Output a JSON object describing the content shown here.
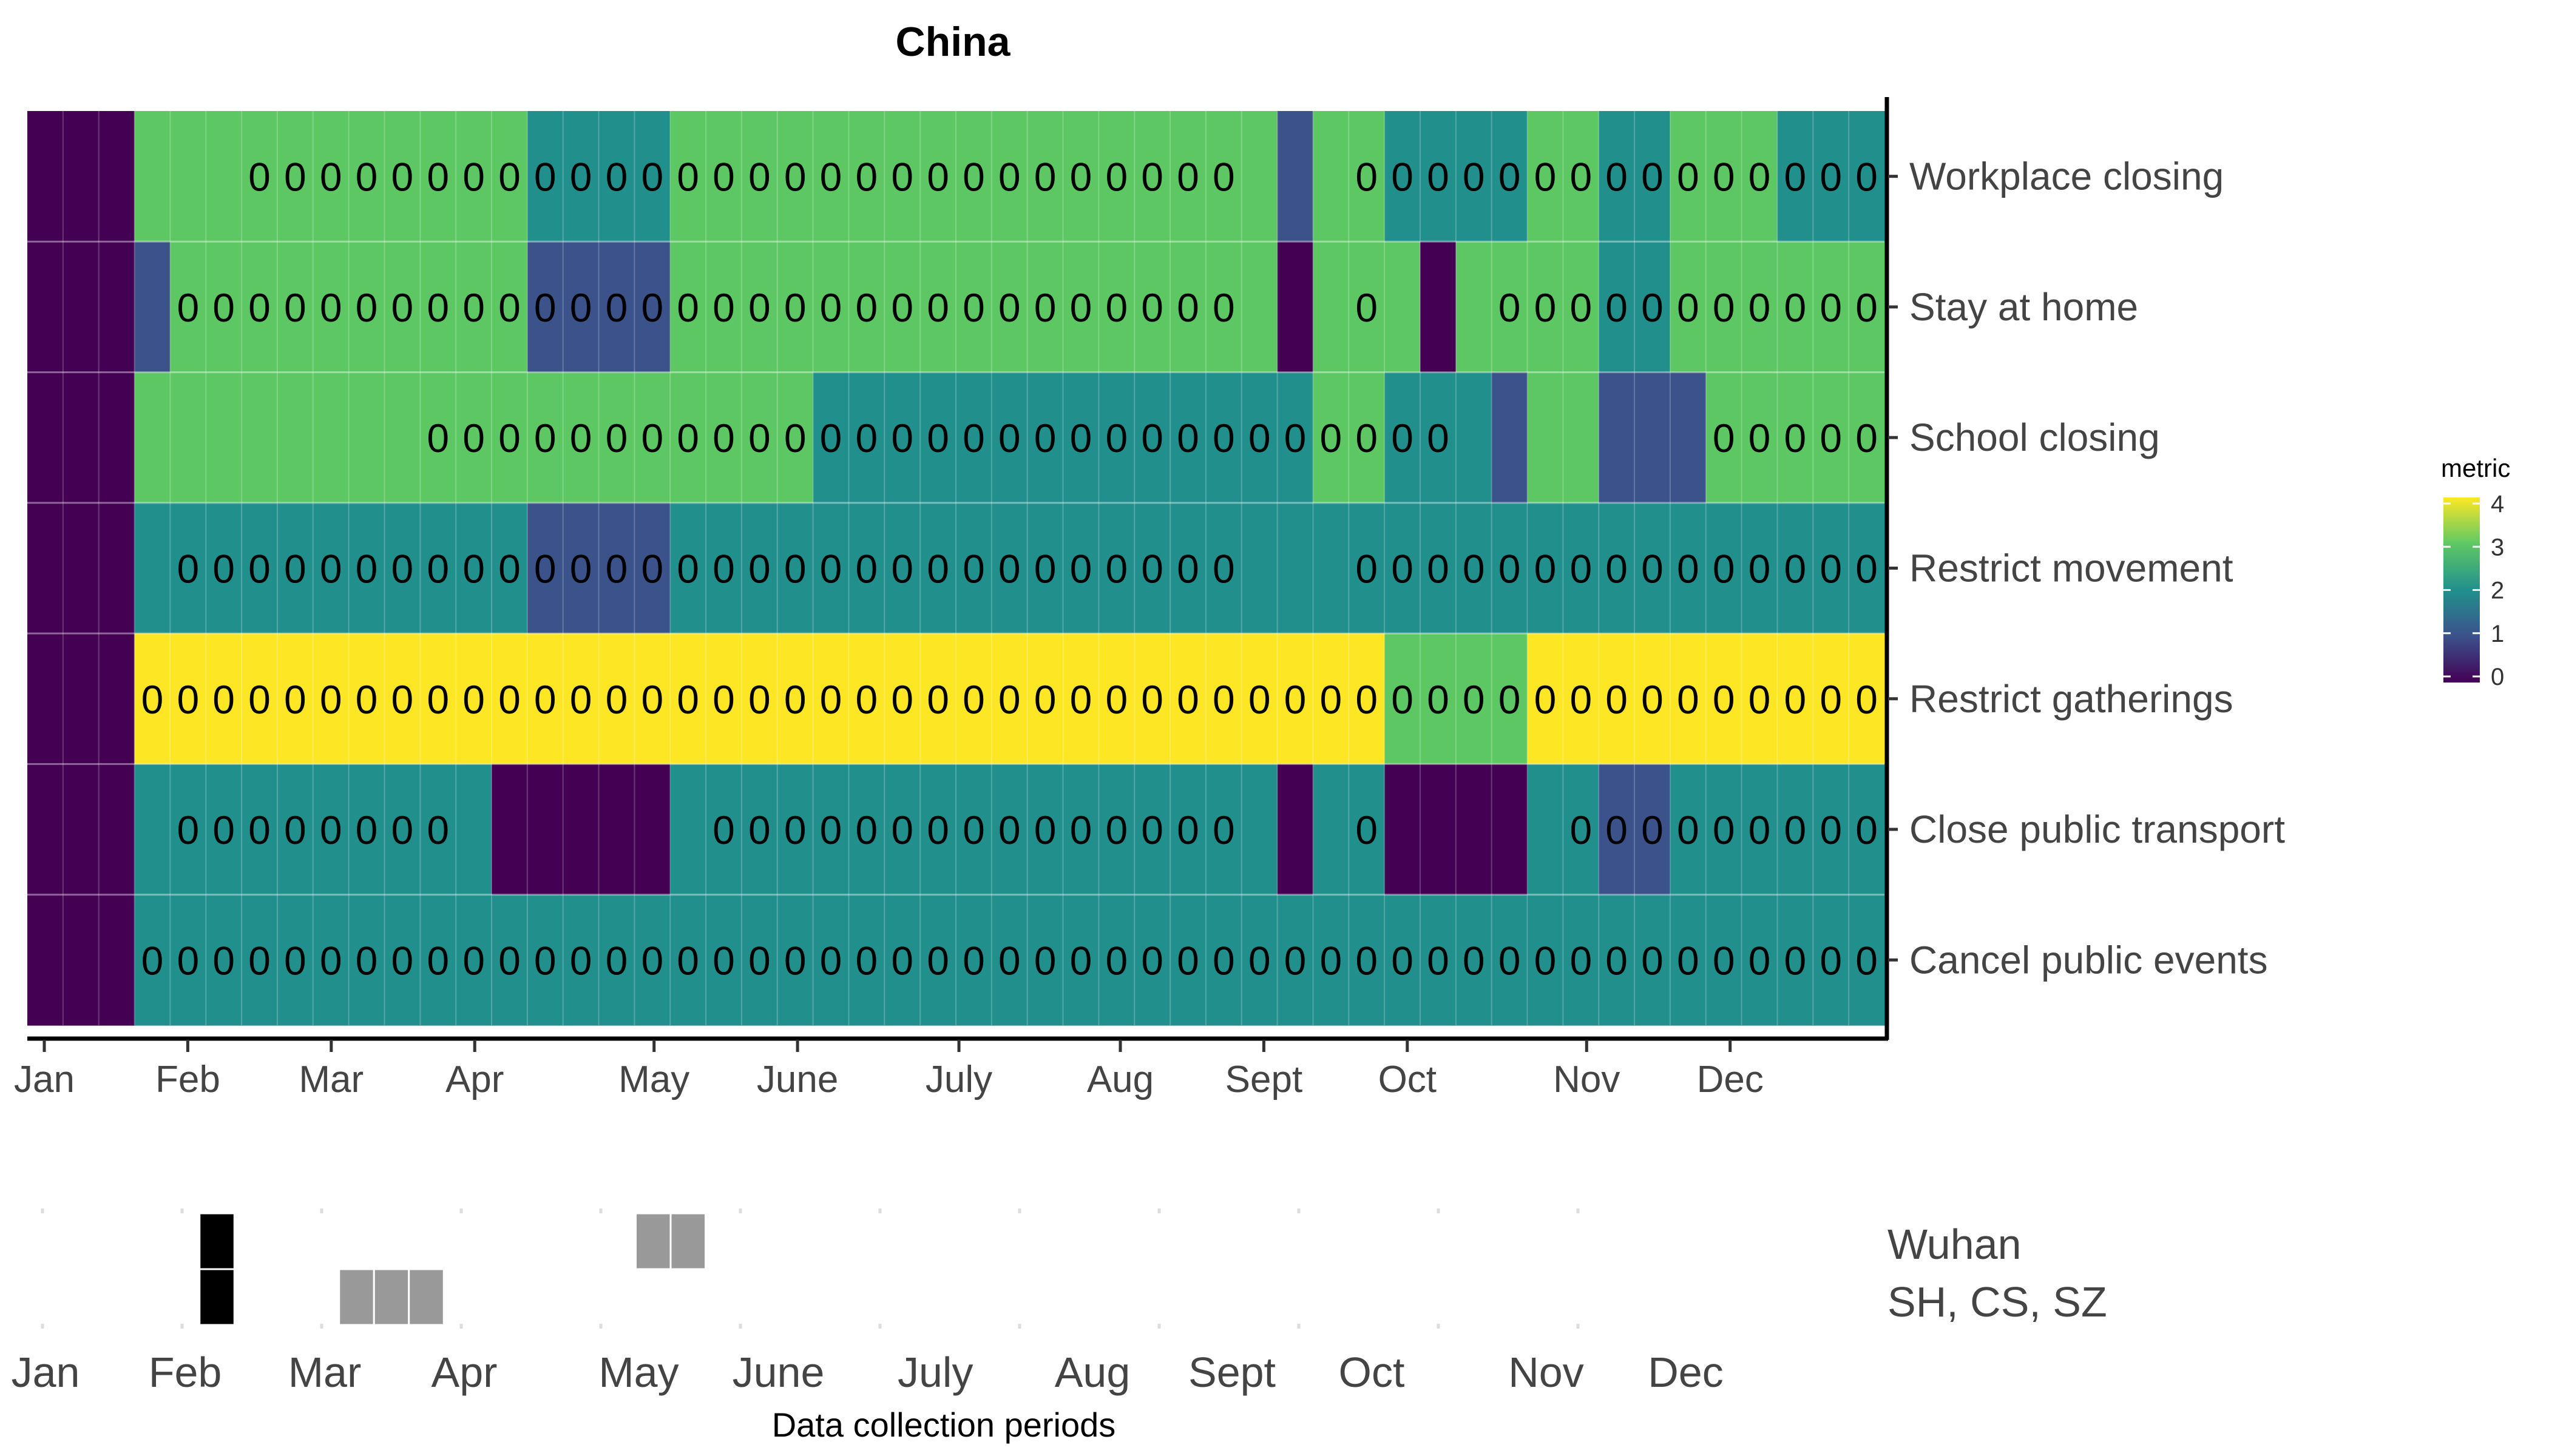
{
  "chart_data": [
    {
      "type": "heatmap",
      "title": "China",
      "legend": {
        "title": "metric",
        "ticks": [
          "4",
          "3",
          "2",
          "1",
          "0"
        ],
        "range": [
          0,
          4
        ],
        "colormap": "viridis",
        "placement": "right"
      },
      "x_ticks": [
        "Jan",
        "Feb",
        "Mar",
        "Apr",
        "May",
        "June",
        "July",
        "Aug",
        "Sept",
        "Oct",
        "Nov",
        "Dec"
      ],
      "x_tick_weeks": [
        0,
        4,
        8,
        12,
        17,
        21,
        25.5,
        30,
        34,
        38,
        43,
        47
      ],
      "weeks_shown": 52,
      "cell_label": "0",
      "rows": [
        {
          "name": "Workplace closing",
          "values": [
            0,
            0,
            0,
            3,
            3,
            3,
            3,
            3,
            3,
            3,
            3,
            3,
            3,
            3,
            2,
            2,
            2,
            2,
            3,
            3,
            3,
            3,
            3,
            3,
            3,
            3,
            3,
            3,
            3,
            3,
            3,
            3,
            3,
            3,
            3,
            1,
            3,
            3,
            2,
            2,
            2,
            2,
            3,
            3,
            2,
            2,
            3,
            3,
            3,
            2,
            2,
            2
          ],
          "labeled_weeks": [
            [
              6,
              13
            ],
            [
              14,
              17
            ],
            [
              18,
              33
            ],
            [
              37,
              41
            ],
            [
              42,
              43
            ],
            [
              44,
              45
            ],
            [
              46,
              48
            ],
            [
              49,
              51
            ]
          ]
        },
        {
          "name": "Stay at home",
          "values": [
            0,
            0,
            0,
            1,
            3,
            3,
            3,
            3,
            3,
            3,
            3,
            3,
            3,
            3,
            1,
            1,
            1,
            1,
            3,
            3,
            3,
            3,
            3,
            3,
            3,
            3,
            3,
            3,
            3,
            3,
            3,
            3,
            3,
            3,
            3,
            0,
            3,
            3,
            3,
            0,
            3,
            3,
            3,
            3,
            2,
            2,
            3,
            3,
            3,
            3,
            3,
            3
          ],
          "labeled_weeks": [
            [
              4,
              13
            ],
            [
              14,
              17
            ],
            [
              18,
              33
            ],
            [
              37,
              37
            ],
            [
              41,
              43
            ],
            [
              44,
              45
            ],
            [
              46,
              51
            ]
          ]
        },
        {
          "name": "School closing",
          "values": [
            0,
            0,
            0,
            3,
            3,
            3,
            3,
            3,
            3,
            3,
            3,
            3,
            3,
            3,
            3,
            3,
            3,
            3,
            3,
            3,
            3,
            3,
            2,
            2,
            2,
            2,
            2,
            2,
            2,
            2,
            2,
            2,
            2,
            2,
            2,
            2,
            3,
            3,
            2,
            2,
            2,
            1,
            3,
            3,
            1,
            1,
            1,
            3,
            3,
            3,
            3,
            3
          ],
          "labeled_weeks": [
            [
              11,
              21
            ],
            [
              22,
              35
            ],
            [
              36,
              37
            ],
            [
              38,
              39
            ],
            [
              47,
              51
            ]
          ]
        },
        {
          "name": "Restrict movement",
          "values": [
            0,
            0,
            0,
            2,
            2,
            2,
            2,
            2,
            2,
            2,
            2,
            2,
            2,
            2,
            1,
            1,
            1,
            1,
            2,
            2,
            2,
            2,
            2,
            2,
            2,
            2,
            2,
            2,
            2,
            2,
            2,
            2,
            2,
            2,
            2,
            2,
            2,
            2,
            2,
            2,
            2,
            2,
            2,
            2,
            2,
            2,
            2,
            2,
            2,
            2,
            2,
            2
          ],
          "labeled_weeks": [
            [
              4,
              13
            ],
            [
              14,
              17
            ],
            [
              18,
              33
            ],
            [
              37,
              51
            ]
          ]
        },
        {
          "name": "Restrict gatherings",
          "values": [
            0,
            0,
            0,
            4,
            4,
            4,
            4,
            4,
            4,
            4,
            4,
            4,
            4,
            4,
            4,
            4,
            4,
            4,
            4,
            4,
            4,
            4,
            4,
            4,
            4,
            4,
            4,
            4,
            4,
            4,
            4,
            4,
            4,
            4,
            4,
            4,
            4,
            4,
            3,
            3,
            3,
            3,
            4,
            4,
            4,
            4,
            4,
            4,
            4,
            4,
            4,
            4
          ],
          "labeled_weeks": [
            [
              3,
              37
            ],
            [
              38,
              41
            ],
            [
              42,
              51
            ]
          ]
        },
        {
          "name": "Close public transport",
          "values": [
            0,
            0,
            0,
            2,
            2,
            2,
            2,
            2,
            2,
            2,
            2,
            2,
            2,
            0,
            0,
            0,
            0,
            0,
            2,
            2,
            2,
            2,
            2,
            2,
            2,
            2,
            2,
            2,
            2,
            2,
            2,
            2,
            2,
            2,
            2,
            0,
            2,
            2,
            0,
            0,
            0,
            0,
            2,
            2,
            1,
            1,
            2,
            2,
            2,
            2,
            2,
            2
          ],
          "labeled_weeks": [
            [
              4,
              11
            ],
            [
              19,
              33
            ],
            [
              37,
              37
            ],
            [
              43,
              43
            ],
            [
              44,
              45
            ],
            [
              46,
              51
            ]
          ]
        },
        {
          "name": "Cancel public events",
          "values": [
            0,
            0,
            0,
            2,
            2,
            2,
            2,
            2,
            2,
            2,
            2,
            2,
            2,
            2,
            2,
            2,
            2,
            2,
            2,
            2,
            2,
            2,
            2,
            2,
            2,
            2,
            2,
            2,
            2,
            2,
            2,
            2,
            2,
            2,
            2,
            2,
            2,
            2,
            2,
            2,
            2,
            2,
            2,
            2,
            2,
            2,
            2,
            2,
            2,
            2,
            2,
            2
          ],
          "labeled_weeks": [
            [
              3,
              51
            ]
          ]
        }
      ]
    },
    {
      "type": "gantt",
      "xlabel": "Data collection periods",
      "x_ticks": [
        "Jan",
        "Feb",
        "Mar",
        "Apr",
        "May",
        "June",
        "July",
        "Aug",
        "Sept",
        "Oct",
        "Nov",
        "Dec"
      ],
      "x_tick_weeks": [
        0,
        4,
        8,
        12,
        17,
        21,
        25.5,
        30,
        34,
        38,
        43,
        47
      ],
      "rows": [
        "Wuhan",
        "SH, CS, SZ"
      ],
      "periods": [
        {
          "row": "Wuhan",
          "start_week": 4.5,
          "weeks": 1,
          "fill": "#000000"
        },
        {
          "row": "SH, CS, SZ",
          "start_week": 4.5,
          "weeks": 1,
          "fill": "#000000"
        },
        {
          "row": "SH, CS, SZ",
          "start_week": 8.5,
          "weeks": 3,
          "fill": "#999999"
        },
        {
          "row": "Wuhan",
          "start_week": 17,
          "weeks": 2,
          "fill": "#999999"
        }
      ]
    }
  ],
  "colors": {
    "viridis_0": "#440154",
    "viridis_1": "#3b528b",
    "viridis_2": "#21908d",
    "viridis_3": "#5dc863",
    "viridis_4": "#fde725",
    "grid_gray": "#999999",
    "label_gray": "#444444"
  }
}
